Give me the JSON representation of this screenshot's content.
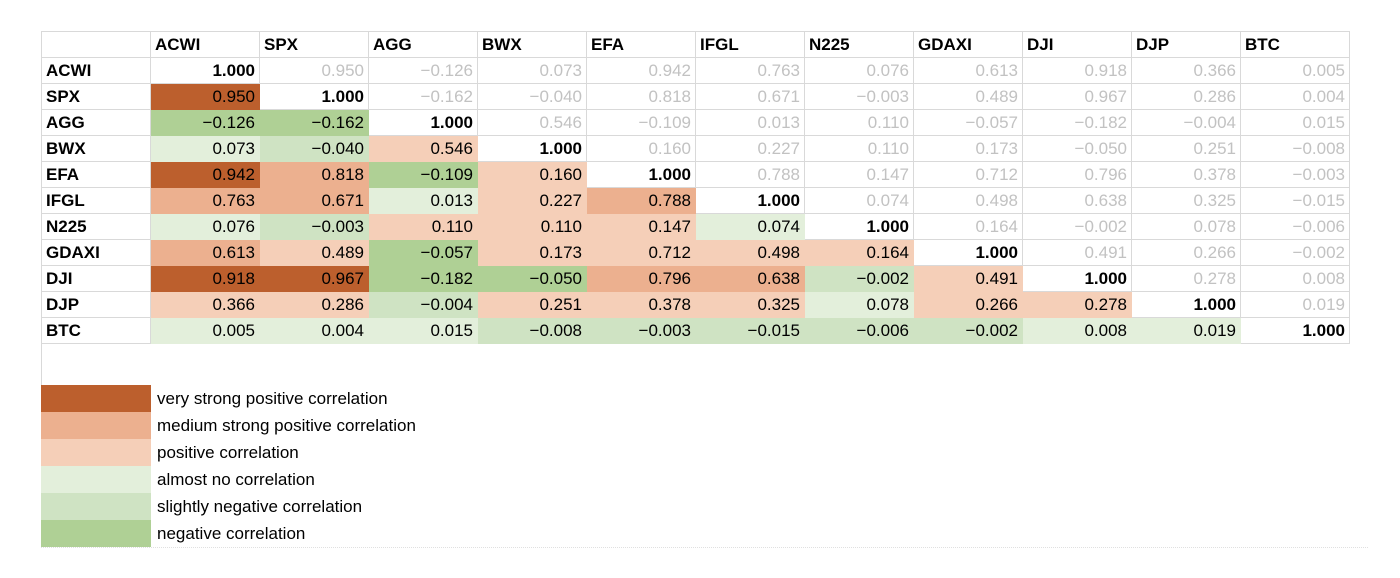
{
  "chart_data": {
    "type": "heatmap",
    "tickers": [
      "ACWI",
      "SPX",
      "AGG",
      "BWX",
      "EFA",
      "IFGL",
      "N225",
      "GDAXI",
      "DJI",
      "DJP",
      "BTC"
    ],
    "matrix": [
      [
        "1.000",
        "0.950",
        "−0.126",
        "0.073",
        "0.942",
        "0.763",
        "0.076",
        "0.613",
        "0.918",
        "0.366",
        "0.005"
      ],
      [
        "0.950",
        "1.000",
        "−0.162",
        "−0.040",
        "0.818",
        "0.671",
        "−0.003",
        "0.489",
        "0.967",
        "0.286",
        "0.004"
      ],
      [
        "−0.126",
        "−0.162",
        "1.000",
        "0.546",
        "−0.109",
        "0.013",
        "0.110",
        "−0.057",
        "−0.182",
        "−0.004",
        "0.015"
      ],
      [
        "0.073",
        "−0.040",
        "0.546",
        "1.000",
        "0.160",
        "0.227",
        "0.110",
        "0.173",
        "−0.050",
        "0.251",
        "−0.008"
      ],
      [
        "0.942",
        "0.818",
        "−0.109",
        "0.160",
        "1.000",
        "0.788",
        "0.147",
        "0.712",
        "0.796",
        "0.378",
        "−0.003"
      ],
      [
        "0.763",
        "0.671",
        "0.013",
        "0.227",
        "0.788",
        "1.000",
        "0.074",
        "0.498",
        "0.638",
        "0.325",
        "−0.015"
      ],
      [
        "0.076",
        "−0.003",
        "0.110",
        "0.110",
        "0.147",
        "0.074",
        "1.000",
        "0.164",
        "−0.002",
        "0.078",
        "−0.006"
      ],
      [
        "0.613",
        "0.489",
        "−0.057",
        "0.173",
        "0.712",
        "0.498",
        "0.164",
        "1.000",
        "0.491",
        "0.266",
        "−0.002"
      ],
      [
        "0.918",
        "0.967",
        "−0.182",
        "−0.050",
        "0.796",
        "0.638",
        "−0.002",
        "0.491",
        "1.000",
        "0.278",
        "0.008"
      ],
      [
        "0.366",
        "0.286",
        "−0.004",
        "0.251",
        "0.378",
        "0.325",
        "0.078",
        "0.266",
        "0.278",
        "1.000",
        "0.019"
      ],
      [
        "0.005",
        "0.004",
        "0.015",
        "−0.008",
        "−0.003",
        "−0.015",
        "−0.006",
        "−0.002",
        "0.008",
        "0.019",
        "1.000"
      ]
    ],
    "lower_categories": [
      [],
      [
        "vs"
      ],
      [
        "neg",
        "neg"
      ],
      [
        "none",
        "slight",
        "pos"
      ],
      [
        "vs",
        "med",
        "neg",
        "pos"
      ],
      [
        "med",
        "med",
        "none",
        "pos",
        "med"
      ],
      [
        "none",
        "slight",
        "pos",
        "pos",
        "pos",
        "none"
      ],
      [
        "med",
        "pos",
        "neg",
        "pos",
        "pos",
        "pos",
        "pos"
      ],
      [
        "vs",
        "vs",
        "neg",
        "neg",
        "med",
        "med",
        "slight",
        "pos"
      ],
      [
        "pos",
        "pos",
        "slight",
        "pos",
        "pos",
        "pos",
        "none",
        "pos",
        "pos"
      ],
      [
        "none",
        "none",
        "none",
        "slight",
        "slight",
        "slight",
        "slight",
        "slight",
        "none",
        "none"
      ]
    ],
    "legend": [
      {
        "key": "vs",
        "label": "very strong positive correlation",
        "color": "#BC5F2D"
      },
      {
        "key": "med",
        "label": "medium strong positive correlation",
        "color": "#ECB08F"
      },
      {
        "key": "pos",
        "label": "positive correlation",
        "color": "#F5CFB8"
      },
      {
        "key": "none",
        "label": "almost no correlation",
        "color": "#E3EFDB"
      },
      {
        "key": "slight",
        "label": "slightly negative correlation",
        "color": "#CFE3C3"
      },
      {
        "key": "neg",
        "label": "negative correlation",
        "color": "#AFD095"
      }
    ]
  }
}
